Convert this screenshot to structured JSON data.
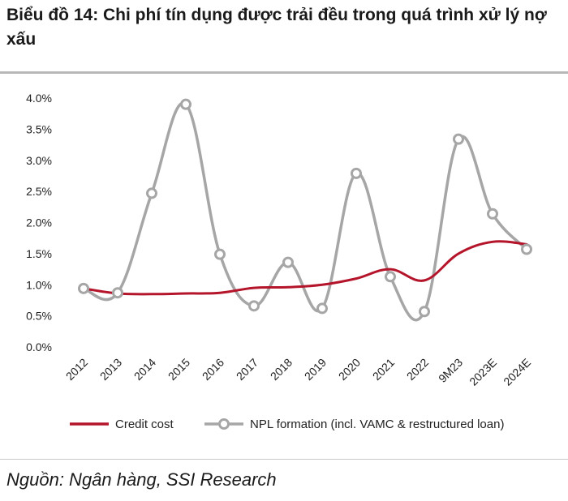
{
  "title": "Biểu đồ 14: Chi phí tín dụng được trải đều trong quá trình xử lý nợ xấu",
  "source": "Nguồn: Ngân hàng, SSI Research",
  "chart_data": {
    "type": "line",
    "categories": [
      "2012",
      "2013",
      "2014",
      "2015",
      "2016",
      "2017",
      "2018",
      "2019",
      "2020",
      "2021",
      "2022",
      "9M23",
      "2023E",
      "2024E"
    ],
    "ylim": [
      0,
      4.0
    ],
    "yticks": [
      "0.0%",
      "0.5%",
      "1.0%",
      "1.5%",
      "2.0%",
      "2.5%",
      "3.0%",
      "3.5%",
      "4.0%"
    ],
    "grid": false,
    "legend_position": "bottom",
    "series": [
      {
        "name": "Credit cost",
        "color": "#b5152b",
        "markers": false,
        "values": [
          0.94,
          0.86,
          0.85,
          0.86,
          0.87,
          0.95,
          0.96,
          1.0,
          1.1,
          1.25,
          1.07,
          1.5,
          1.69,
          1.65
        ]
      },
      {
        "name": "NPL formation (incl. VAMC & restructured loan)",
        "color": "#a6a6a6",
        "markers": true,
        "values": [
          0.94,
          0.87,
          2.47,
          3.9,
          1.49,
          0.66,
          1.36,
          0.62,
          2.79,
          1.13,
          0.57,
          3.34,
          2.14,
          1.57
        ]
      }
    ]
  }
}
